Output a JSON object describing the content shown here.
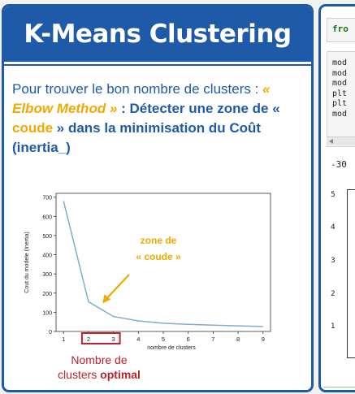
{
  "slide": {
    "title": "K-Means Clustering",
    "intro": "Pour trouver le bon nombre de clusters :",
    "method": "« Elbow Method »",
    "detect_a": " : Détecter une zone de « ",
    "coude": "coude",
    "detect_b": " » dans la minimisation du Coût (inertia_)",
    "below_line1": "Nombre de",
    "below_line2a": "clusters ",
    "below_line2b": "optimal"
  },
  "chart_data": {
    "type": "line",
    "xlabel": "nombre de clusters",
    "ylabel": "Cout du modele (Inertia)",
    "x": [
      1,
      2,
      3,
      4,
      5,
      6,
      7,
      8,
      9
    ],
    "values": [
      680,
      155,
      78,
      55,
      43,
      37,
      33,
      29,
      26
    ],
    "xlim": [
      0.7,
      9.3
    ],
    "ylim": [
      0,
      720
    ],
    "x_ticks": [
      "1",
      "2",
      "3",
      "4",
      "5",
      "6",
      "7",
      "8",
      "9"
    ],
    "y_ticks": [
      "0",
      "100",
      "200",
      "300",
      "400",
      "500",
      "600",
      "700"
    ],
    "annotation": [
      "zone de",
      "« coude »"
    ],
    "line_color": "#7aaed0",
    "annotation_color": "#f2a800",
    "highlight_box": [
      2,
      3
    ],
    "highlight_color": "#c0202a"
  },
  "notebook": {
    "cell1_text": "fro",
    "code_lines": [
      "mod",
      "mod",
      "mod",
      "plt",
      "plt",
      "mod"
    ],
    "output_text": "-30",
    "y_ticks": [
      "5",
      "4",
      "3",
      "2",
      "1"
    ]
  }
}
